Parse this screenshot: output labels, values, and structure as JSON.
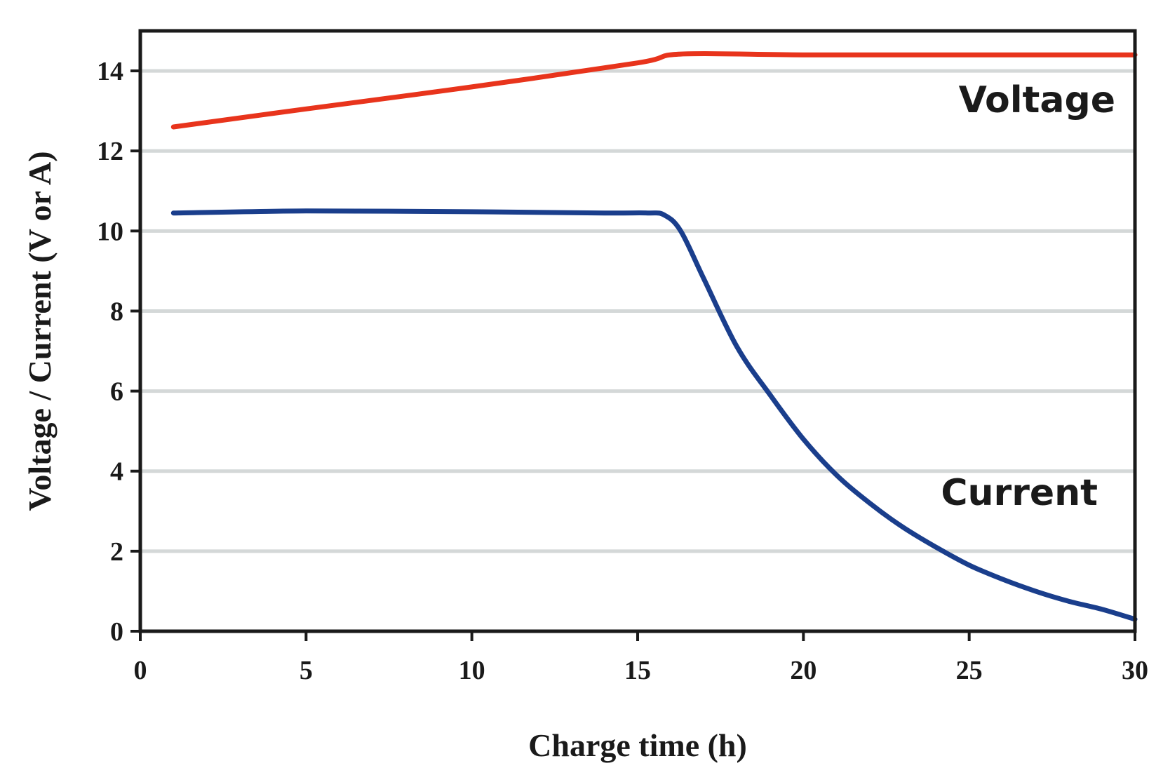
{
  "chart_data": {
    "type": "line",
    "title": "",
    "xlabel": "Charge time (h)",
    "ylabel": "Voltage / Current (V or A)",
    "xlim": [
      0,
      30
    ],
    "ylim": [
      0,
      15
    ],
    "x_ticks": [
      0,
      5,
      10,
      15,
      20,
      25,
      30
    ],
    "x_tick_labels": [
      "0",
      "5",
      "10",
      "15",
      "20",
      "25",
      "30"
    ],
    "y_ticks": [
      0,
      2,
      4,
      6,
      8,
      10,
      12,
      14
    ],
    "y_tick_labels": [
      "0",
      "2",
      "4",
      "6",
      "8",
      "10",
      "12",
      "14"
    ],
    "grid": "horizontal",
    "legend": "none",
    "series": [
      {
        "name": "Voltage",
        "color": "#e8341c",
        "x": [
          1,
          5,
          10,
          15,
          16.3,
          20,
          25,
          30
        ],
        "y": [
          12.6,
          13.05,
          13.6,
          14.2,
          14.42,
          14.4,
          14.4,
          14.4
        ]
      },
      {
        "name": "Current",
        "color": "#1a3e8c",
        "x": [
          1,
          5,
          10,
          14,
          15.3,
          15.8,
          16.3,
          17,
          18,
          19,
          20,
          21,
          22,
          23,
          24,
          25,
          26,
          27,
          28,
          29,
          30
        ],
        "y": [
          10.45,
          10.5,
          10.48,
          10.45,
          10.45,
          10.4,
          10.0,
          8.8,
          7.1,
          5.9,
          4.8,
          3.9,
          3.2,
          2.6,
          2.1,
          1.65,
          1.3,
          1.0,
          0.75,
          0.55,
          0.3
        ]
      }
    ]
  }
}
